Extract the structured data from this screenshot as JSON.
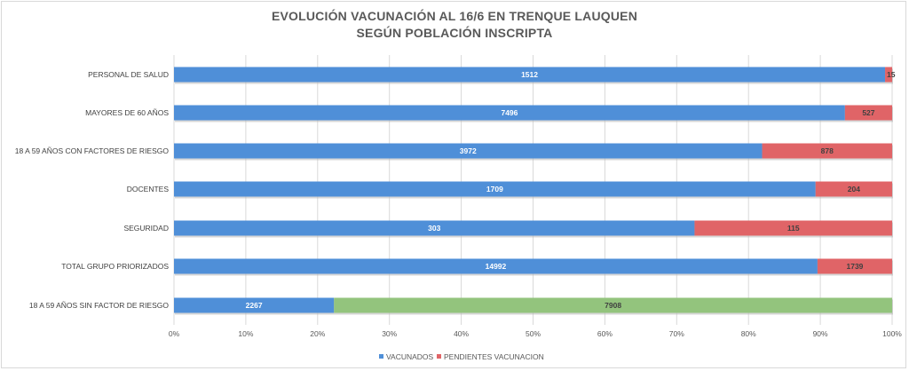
{
  "chart_data": {
    "type": "bar",
    "orientation": "horizontal",
    "stacked": "percent",
    "title": "EVOLUCIÓN VACUNACIÓN AL 16/6 EN TRENQUE LAUQUEN",
    "subtitle": "SEGÚN POBLACIÓN INSCRIPTA",
    "xlabel": "",
    "ylabel": "",
    "xlim": [
      0,
      100
    ],
    "x_ticks": [
      "0%",
      "10%",
      "20%",
      "30%",
      "40%",
      "50%",
      "60%",
      "70%",
      "80%",
      "90%",
      "100%"
    ],
    "grid": true,
    "legend_position": "bottom",
    "categories": [
      "PERSONAL DE SALUD",
      "MAYORES DE 60 AÑOS",
      "18 A 59 AÑOS CON FACTORES DE RIESGO",
      "DOCENTES",
      "SEGURIDAD",
      "TOTAL GRUPO PRIORIZADOS",
      "18 A 59 AÑOS SIN FACTOR DE RIESGO"
    ],
    "series": [
      {
        "name": "VACUNADOS",
        "color": "#4f8fd8",
        "values": [
          1512,
          7496,
          3972,
          1709,
          303,
          14992,
          2267
        ]
      },
      {
        "name": "PENDIENTES VACUNACION",
        "color": "#e06467",
        "values": [
          15,
          527,
          878,
          204,
          115,
          1739,
          7908
        ]
      }
    ],
    "special_colors": {
      "18 A 59 AÑOS SIN FACTOR DE RIESGO": "#93c47d"
    }
  }
}
